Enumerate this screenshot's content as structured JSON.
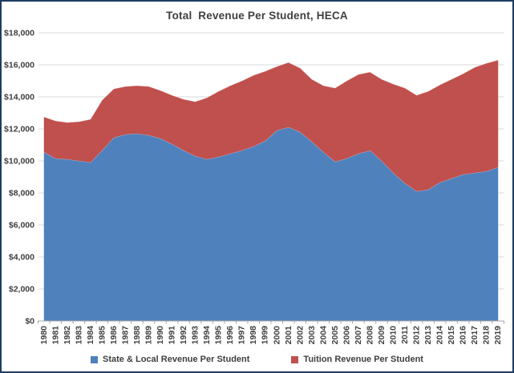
{
  "chart": {
    "title": "Total  Revenue Per Student, HECA"
  },
  "chart_data": {
    "type": "area",
    "stacked": true,
    "title": "Total  Revenue Per Student, HECA",
    "xlabel": "",
    "ylabel": "",
    "ylim": [
      0,
      18000
    ],
    "ytick_step": 2000,
    "ytick_prefix": "$",
    "grid": true,
    "legend_position": "bottom",
    "categories": [
      "1980",
      "1981",
      "1982",
      "1983",
      "1984",
      "1985",
      "1986",
      "1987",
      "1988",
      "1989",
      "1990",
      "1991",
      "1992",
      "1993",
      "1994",
      "1995",
      "1996",
      "1997",
      "1998",
      "1999",
      "2000",
      "2001",
      "2002",
      "2003",
      "2004",
      "2005",
      "2006",
      "2007",
      "2008",
      "2009",
      "2010",
      "2011",
      "2012",
      "2013",
      "2014",
      "2015",
      "2016",
      "2017",
      "2018",
      "2019"
    ],
    "series": [
      {
        "name": "State & Local Revenue Per Student",
        "color": "#4F81BD",
        "values": [
          10550,
          10150,
          10100,
          10000,
          9900,
          10650,
          11450,
          11650,
          11700,
          11600,
          11400,
          11050,
          10650,
          10300,
          10100,
          10250,
          10450,
          10650,
          10900,
          11250,
          11900,
          12100,
          11800,
          11200,
          10550,
          9950,
          10150,
          10450,
          10650,
          10000,
          9250,
          8600,
          8100,
          8200,
          8650,
          8900,
          9150,
          9250,
          9350,
          9600
        ]
      },
      {
        "name": "Tuition Revenue Per Student",
        "color": "#C0504D",
        "values": [
          2200,
          2350,
          2300,
          2450,
          2700,
          3150,
          3050,
          3000,
          3000,
          3050,
          3000,
          3050,
          3200,
          3400,
          3850,
          4100,
          4250,
          4350,
          4450,
          4350,
          4000,
          4050,
          4000,
          3900,
          4150,
          4600,
          4850,
          4950,
          4900,
          5100,
          5550,
          5950,
          6000,
          6150,
          6100,
          6200,
          6300,
          6600,
          6750,
          6700
        ]
      }
    ]
  },
  "style_colors": {
    "frame_border": "#1F3C64",
    "gridline": "#D9D9D9",
    "axis_line": "#A6A6A6",
    "label_text": "#3F3F3F"
  }
}
